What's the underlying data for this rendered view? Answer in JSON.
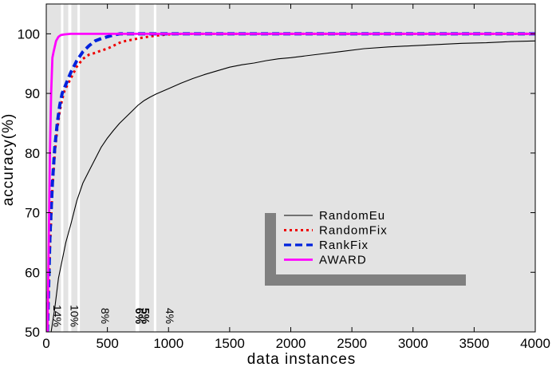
{
  "chart_data": {
    "type": "line",
    "xlabel": "data instances",
    "ylabel": "accuracy(%)",
    "xlim": [
      0,
      4000
    ],
    "ylim": [
      50,
      105
    ],
    "x_ticks": [
      "0",
      "500",
      "1000",
      "1500",
      "2000",
      "2500",
      "3000",
      "3500",
      "4000"
    ],
    "y_ticks": [
      "50",
      "60",
      "70",
      "80",
      "90",
      "100"
    ],
    "x_tick_values": [
      0,
      500,
      1000,
      1500,
      2000,
      2500,
      3000,
      3500,
      4000
    ],
    "y_tick_values": [
      50,
      60,
      70,
      80,
      90,
      100
    ],
    "grid": false,
    "background": "#e3e3e3",
    "legend_position": "center-right",
    "series": [
      {
        "name": "RandomEu",
        "color": "#000000",
        "style": "solid",
        "x": [
          10,
          40,
          70,
          100,
          130,
          160,
          200,
          250,
          300,
          350,
          400,
          450,
          500,
          550,
          600,
          650,
          700,
          750,
          800,
          850,
          900,
          1000,
          1100,
          1200,
          1300,
          1400,
          1500,
          1600,
          1700,
          1800,
          1900,
          2000,
          2200,
          2400,
          2600,
          2800,
          3000,
          3200,
          3400,
          3600,
          3800,
          4000
        ],
        "y": [
          50,
          50,
          54,
          59,
          62,
          65,
          68,
          72,
          75,
          77,
          79,
          81,
          82.5,
          83.8,
          85,
          86,
          87,
          88,
          88.8,
          89.4,
          89.9,
          90.8,
          91.7,
          92.5,
          93.2,
          93.8,
          94.4,
          94.8,
          95.1,
          95.5,
          95.8,
          96,
          96.5,
          97,
          97.5,
          97.8,
          98,
          98.2,
          98.4,
          98.5,
          98.7,
          98.8
        ]
      },
      {
        "name": "RandomFix",
        "color": "#ee0000",
        "style": "dotted",
        "x": [
          10,
          30,
          50,
          70,
          90,
          110,
          130,
          150,
          200,
          250,
          300,
          350,
          400,
          450,
          500,
          550,
          600,
          650,
          700,
          800,
          900,
          1000,
          1100,
          1200,
          1500,
          2000,
          3000,
          4000
        ],
        "y": [
          50,
          64,
          74,
          80,
          84,
          87,
          89,
          90.5,
          92.5,
          94.5,
          95.8,
          96.5,
          96.8,
          97.2,
          97.5,
          98,
          98.5,
          98.8,
          99,
          99.4,
          99.7,
          99.9,
          100,
          100,
          100,
          100,
          100,
          100
        ]
      },
      {
        "name": "RankFix",
        "color": "#0022dd",
        "style": "dashed",
        "x": [
          10,
          30,
          50,
          70,
          90,
          110,
          130,
          150,
          200,
          250,
          300,
          350,
          400,
          450,
          500,
          550,
          600,
          700,
          800,
          1000,
          1500,
          2000,
          3000,
          4000
        ],
        "y": [
          50,
          66,
          75,
          81,
          85,
          88,
          90,
          91,
          93.5,
          95.5,
          97,
          98,
          98.8,
          99.2,
          99.5,
          99.8,
          100,
          100,
          100,
          100,
          100,
          100,
          100,
          100
        ]
      },
      {
        "name": "AWARD",
        "color": "#ff00ff",
        "style": "solid",
        "x": [
          10,
          20,
          30,
          40,
          50,
          60,
          80,
          100,
          120,
          150,
          200,
          300,
          500,
          700,
          1000,
          2000,
          3000,
          4000
        ],
        "y": [
          50,
          65,
          80,
          90,
          96,
          97,
          98.8,
          99.5,
          99.8,
          99.9,
          100,
          100,
          100,
          100,
          100,
          100,
          100,
          100
        ]
      }
    ],
    "region_labels": [
      "14%",
      "10%",
      "8%",
      "6%",
      "5%",
      "4%"
    ],
    "region_label_x": [
      60,
      200,
      450,
      730,
      780,
      980
    ],
    "region_label_emphasis": [
      false,
      false,
      false,
      true,
      true,
      false
    ],
    "white_bands": [
      [
        120,
        140
      ],
      [
        180,
        205
      ],
      [
        255,
        275
      ],
      [
        730,
        760
      ],
      [
        880,
        900
      ]
    ]
  }
}
